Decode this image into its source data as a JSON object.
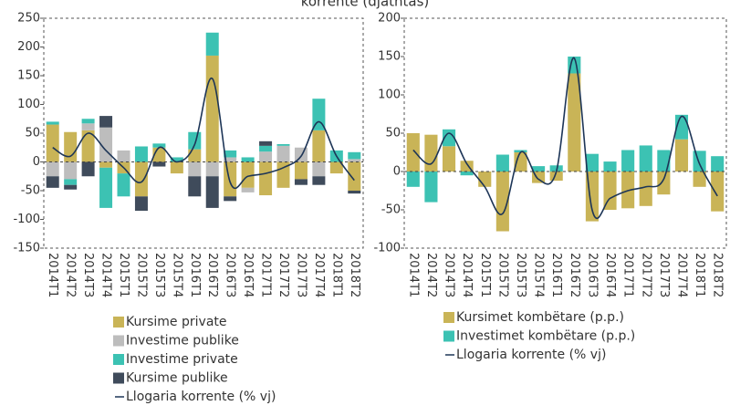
{
  "title": "korrente (djathtas)",
  "chart_data": [
    {
      "type": "bar",
      "stacked": true,
      "categories": [
        "2014T1",
        "2014T2",
        "2014T3",
        "2014T4",
        "2015T1",
        "2015T2",
        "2015T3",
        "2015T4",
        "2016T1",
        "2016T2",
        "2016T3",
        "2016T4",
        "2017T1",
        "2017T2",
        "2017T3",
        "2017T4",
        "2018T1",
        "2018T2"
      ],
      "ylim": [
        -150,
        250
      ],
      "yticks": [
        -150,
        -100,
        -50,
        0,
        50,
        100,
        150,
        200,
        250
      ],
      "series": [
        {
          "name": "Kursime private",
          "color": "#c9b457",
          "values": [
            65,
            52,
            55,
            -10,
            -20,
            -60,
            25,
            -20,
            22,
            185,
            -60,
            -45,
            -58,
            -45,
            -30,
            55,
            -20,
            -50
          ]
        },
        {
          "name": "Investime publike",
          "color": "#bdbdbd",
          "values": [
            -25,
            -30,
            12,
            60,
            20,
            0,
            0,
            0,
            -25,
            -25,
            8,
            -8,
            18,
            28,
            25,
            -25,
            0,
            5
          ]
        },
        {
          "name": "Investime private",
          "color": "#3cc2b3",
          "values": [
            5,
            -10,
            8,
            -70,
            -40,
            27,
            7,
            8,
            30,
            40,
            12,
            8,
            10,
            3,
            0,
            55,
            20,
            12
          ]
        },
        {
          "name": "Kursime publike",
          "color": "#3f4b5b",
          "values": [
            -20,
            -8,
            -25,
            20,
            0,
            -25,
            -8,
            0,
            -35,
            -55,
            -8,
            0,
            8,
            0,
            -10,
            -15,
            0,
            -5
          ]
        },
        {
          "name": "Llogaria korrente (% vj)",
          "color": "#1d3557",
          "type": "line",
          "values": [
            25,
            10,
            50,
            20,
            -10,
            -35,
            25,
            0,
            30,
            145,
            -35,
            -25,
            -20,
            -10,
            10,
            70,
            10,
            -32
          ]
        }
      ]
    },
    {
      "type": "bar",
      "stacked": true,
      "categories": [
        "2014T1",
        "2014T2",
        "2014T3",
        "2014T4",
        "2015T1",
        "2015T2",
        "2015T3",
        "2015T4",
        "2016T1",
        "2016T2",
        "2016T3",
        "2016T4",
        "2017T1",
        "2017T2",
        "2017T3",
        "2017T4",
        "2018T1",
        "2018T2"
      ],
      "ylim": [
        -100,
        200
      ],
      "yticks": [
        -100,
        -50,
        0,
        50,
        100,
        150,
        200
      ],
      "series": [
        {
          "name": "Kursimet kombëtare (p.p.)",
          "color": "#c9b457",
          "values": [
            50,
            48,
            33,
            14,
            -20,
            -78,
            25,
            -15,
            -12,
            128,
            -65,
            -50,
            -48,
            -45,
            -30,
            42,
            -20,
            -52
          ]
        },
        {
          "name": "Investimet kombëtare (p.p.)",
          "color": "#3cc2b3",
          "values": [
            -20,
            -40,
            22,
            -5,
            0,
            22,
            3,
            7,
            8,
            22,
            23,
            13,
            28,
            34,
            28,
            32,
            27,
            20
          ]
        },
        {
          "name": "Llogaria korrente (% vj)",
          "color": "#1d3557",
          "type": "line",
          "values": [
            28,
            10,
            50,
            10,
            -20,
            -55,
            25,
            -10,
            0,
            148,
            -50,
            -35,
            -25,
            -20,
            -10,
            72,
            10,
            -32
          ]
        }
      ]
    }
  ]
}
